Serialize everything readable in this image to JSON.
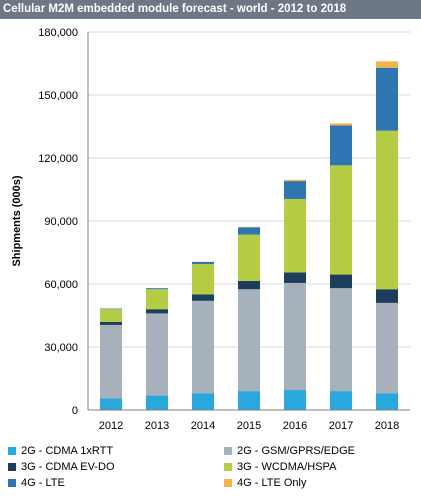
{
  "chart_data": {
    "type": "bar",
    "stacked": true,
    "title": "Cellular M2M embedded module forecast - world - 2012 to 2018",
    "xlabel": "",
    "ylabel": "Shipments (000s)",
    "ylim": [
      0,
      180000
    ],
    "yticks": [
      0,
      30000,
      60000,
      90000,
      120000,
      150000,
      180000
    ],
    "ytick_labels": [
      "0",
      "30,000",
      "60,000",
      "90,000",
      "120,000",
      "150,000",
      "180,000"
    ],
    "categories": [
      "2012",
      "2013",
      "2014",
      "2015",
      "2016",
      "2017",
      "2018"
    ],
    "grid": true,
    "legend_position": "bottom",
    "series": [
      {
        "name": "2G - CDMA 1xRTT",
        "color": "#2aa8de",
        "values": [
          5500,
          7000,
          8000,
          9000,
          9500,
          9000,
          8000
        ]
      },
      {
        "name": "2G - GSM/GPRS/EDGE",
        "color": "#a7b1bb",
        "values": [
          35000,
          39000,
          44000,
          48500,
          51000,
          49000,
          43000
        ]
      },
      {
        "name": "3G - CDMA EV-DO",
        "color": "#1d3d5c",
        "values": [
          1500,
          2000,
          3000,
          4000,
          5000,
          6500,
          6500
        ]
      },
      {
        "name": "3G - WCDMA/HSPA",
        "color": "#b5cd45",
        "values": [
          6000,
          9500,
          14500,
          22000,
          35000,
          52000,
          75500
        ]
      },
      {
        "name": "4G - LTE",
        "color": "#2e76b1",
        "values": [
          300,
          500,
          1000,
          3500,
          8500,
          19000,
          30000
        ]
      },
      {
        "name": "4G - LTE Only",
        "color": "#f7b24b",
        "values": [
          0,
          0,
          100,
          200,
          600,
          1000,
          3000
        ]
      }
    ]
  }
}
